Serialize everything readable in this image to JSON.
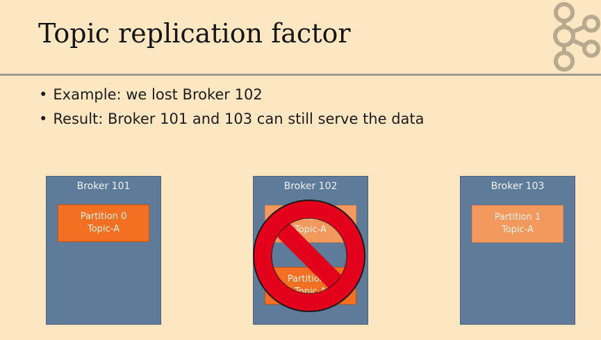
{
  "slide": {
    "title": "Topic replication factor",
    "bullets": [
      "Example: we lost Broker 102",
      "Result: Broker 101 and 103 can still serve the data"
    ]
  },
  "logo": {
    "icon": "kafka-logo-icon",
    "color": "#b9a98f"
  },
  "brokers": [
    {
      "name": "Broker 101",
      "partitions": [
        {
          "partition": "Partition 0",
          "topic": "Topic-A"
        }
      ]
    },
    {
      "name": "Broker 102",
      "partitions": [
        {
          "partition": "Partition 1",
          "topic": "Topic-A"
        },
        {
          "partition": "Partition 0",
          "topic": "Topic-A"
        }
      ]
    },
    {
      "name": "Broker 103",
      "partitions": [
        {
          "partition": "Partition 1",
          "topic": "Topic-A"
        }
      ]
    }
  ],
  "overlay": {
    "icon": "prohibited-icon",
    "color": "#e3001b"
  },
  "colors": {
    "background": "#fde7c2",
    "broker": "#5e7c99",
    "partition": "#f36f21",
    "partition_faded": "#f4995e"
  }
}
